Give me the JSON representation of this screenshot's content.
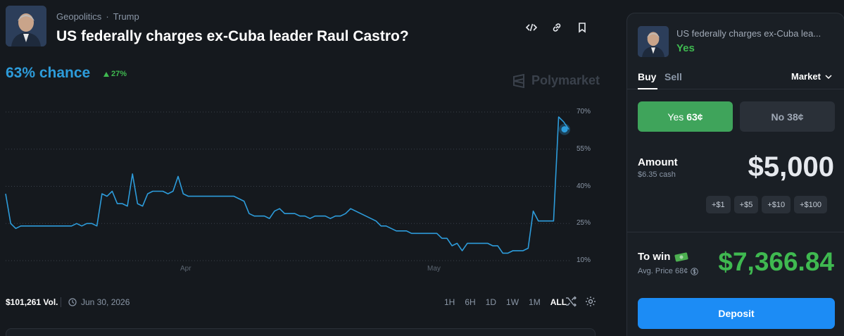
{
  "header": {
    "category": "Geopolitics",
    "tag": "Trump",
    "separator": "·",
    "title": "US federally charges ex-Cuba leader Raul Castro?"
  },
  "chance": {
    "text": "63% chance",
    "delta": "27%"
  },
  "watermark": "Polymarket",
  "chart_data": {
    "type": "line",
    "y_ticks": [
      "70%",
      "55%",
      "40%",
      "25%",
      "10%"
    ],
    "x_ticks": [
      "Apr",
      "May"
    ],
    "ylim": [
      10,
      70
    ],
    "series": [
      {
        "values": [
          37,
          25,
          23,
          24,
          24,
          24,
          24,
          24,
          24,
          24,
          24,
          24,
          24,
          24,
          25,
          24,
          25,
          25,
          24,
          37,
          36,
          38,
          33,
          33,
          32,
          45,
          33,
          32,
          37,
          38,
          38,
          38,
          37,
          38,
          44,
          37,
          36,
          36,
          36,
          36,
          36,
          36,
          36,
          36,
          36,
          36,
          35,
          34,
          29,
          28,
          28,
          28,
          27,
          30,
          31,
          29,
          29,
          29,
          28,
          28,
          27,
          28,
          28,
          28,
          27,
          28,
          28,
          29,
          31,
          30,
          29,
          28,
          27,
          26,
          24,
          24,
          23,
          22,
          22,
          22,
          21,
          21,
          21,
          21,
          21,
          21,
          19,
          19,
          16,
          17,
          14,
          17,
          17,
          17,
          17,
          17,
          16,
          16,
          13,
          13,
          14,
          14,
          14,
          15,
          30,
          26,
          26,
          26,
          26,
          68,
          66,
          63
        ],
        "color": "#2d9cdb"
      }
    ],
    "grid": true
  },
  "footer": {
    "volume": "$101,261 Vol.",
    "end_date": "Jun 30, 2026",
    "ranges": [
      "1H",
      "6H",
      "1D",
      "1W",
      "1M",
      "ALL"
    ],
    "active_range": "ALL"
  },
  "panel": {
    "question": "US federally charges ex-Cuba lea...",
    "outcome": "Yes",
    "tab_buy": "Buy",
    "tab_sell": "Sell",
    "order_type": "Market",
    "yes_label": "Yes",
    "yes_price": "63¢",
    "no_label": "No",
    "no_price": "38¢",
    "amount_label": "Amount",
    "cash": "$6.35 cash",
    "amount": "$5,000",
    "increments": [
      "+$1",
      "+$5",
      "+$10",
      "+$100"
    ],
    "to_win_label": "To win",
    "avg_price": "Avg. Price 68¢",
    "to_win_value": "$7,366.84",
    "deposit_label": "Deposit"
  },
  "colors": {
    "accent": "#2d9cdb",
    "green": "#3fb950",
    "deposit": "#1c8cf5"
  }
}
